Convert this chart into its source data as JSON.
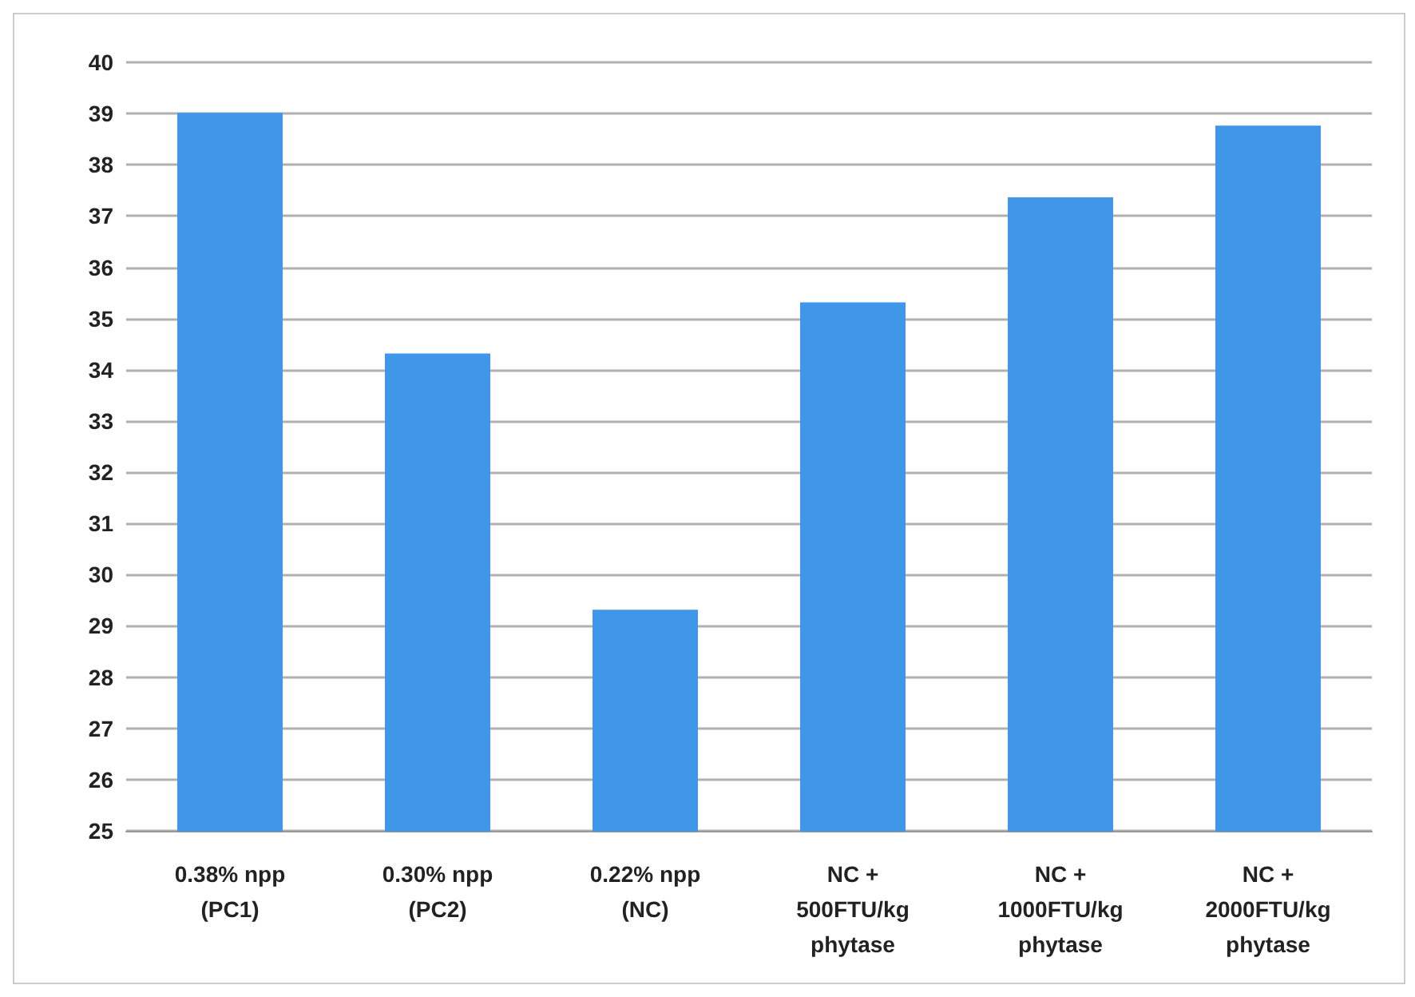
{
  "chart_data": {
    "type": "bar",
    "categories": [
      "0.38% npp\n(PC1)",
      "0.30% npp\n(PC2)",
      "0.22% npp\n(NC)",
      "NC +\n500FTU/kg\nphytase",
      "NC +\n1000FTU/kg\nphytase",
      "NC +\n2000FTU/kg\nphytase"
    ],
    "values": [
      39.0,
      34.3,
      29.3,
      35.3,
      37.35,
      38.75
    ],
    "color": "#4096e8",
    "ylim": [
      25,
      40
    ],
    "yticks": [
      25,
      26,
      27,
      28,
      29,
      30,
      31,
      32,
      33,
      34,
      35,
      36,
      37,
      38,
      39,
      40
    ],
    "grid": "y"
  }
}
